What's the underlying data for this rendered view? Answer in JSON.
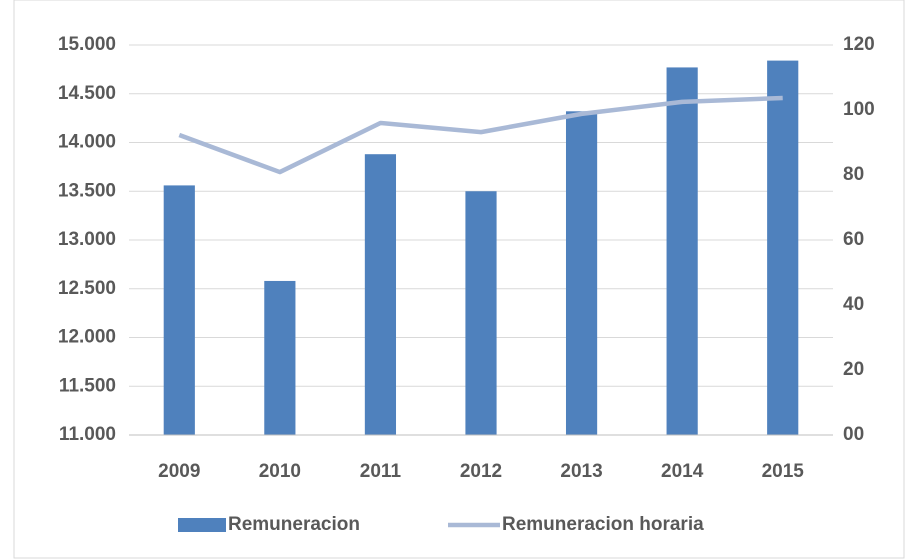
{
  "chart_data": {
    "type": "bar-line",
    "categories": [
      "2009",
      "2010",
      "2011",
      "2012",
      "2013",
      "2014",
      "2015"
    ],
    "series": [
      {
        "name": "Remuneracion",
        "type": "bar",
        "color": "#4f81bd",
        "values": [
          13560,
          12580,
          13880,
          13500,
          14320,
          14770,
          14840
        ]
      },
      {
        "name": "Remuneracion horaria",
        "type": "line",
        "axis": "y2",
        "color": "#a9b9d6",
        "values": [
          92.3,
          80.9,
          96,
          93.2,
          98.8,
          102.5,
          103.7
        ]
      }
    ],
    "ylim": [
      11000,
      15000
    ],
    "yticks": [
      {
        "value": 11000,
        "label": "11.000"
      },
      {
        "value": 11500,
        "label": "11.500"
      },
      {
        "value": 12000,
        "label": "12.000"
      },
      {
        "value": 12500,
        "label": "12.500"
      },
      {
        "value": 13000,
        "label": "13.000"
      },
      {
        "value": 13500,
        "label": "13.500"
      },
      {
        "value": 14000,
        "label": "14.000"
      },
      {
        "value": 14500,
        "label": "14.500"
      },
      {
        "value": 15000,
        "label": "15.000"
      }
    ],
    "y2lim": [
      0,
      120
    ],
    "y2ticks": [
      {
        "value": 0,
        "label": "00"
      },
      20,
      40,
      60,
      80,
      100,
      120
    ],
    "grid": true,
    "legend": "bottom"
  }
}
